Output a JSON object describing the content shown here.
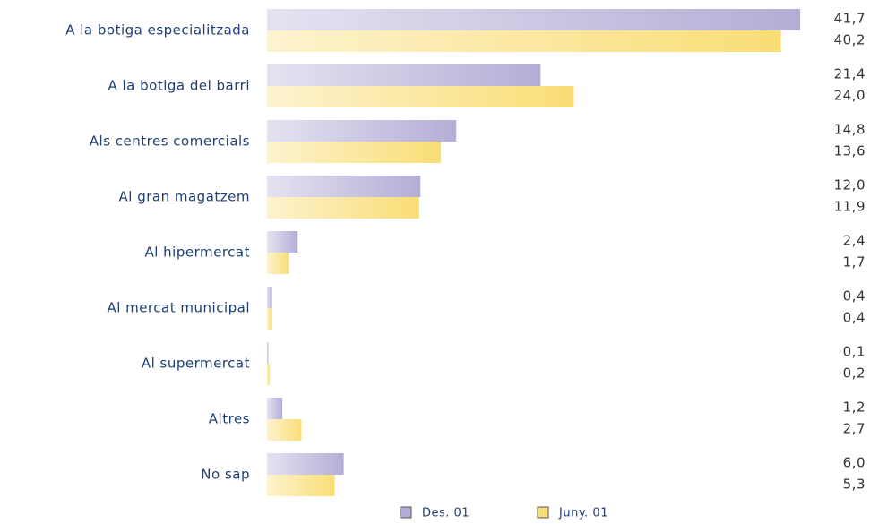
{
  "chart_data": {
    "type": "bar",
    "orientation": "horizontal",
    "categories": [
      "A la botiga especialitzada",
      "A la botiga del barri",
      "Als centres comercials",
      "Al gran magatzem",
      "Al hipermercat",
      "Al mercat municipal",
      "Al supermercat",
      "Altres",
      "No sap"
    ],
    "series": [
      {
        "name": "Des. 01",
        "color": "#b3aed6",
        "values": [
          41.7,
          21.4,
          14.8,
          12.0,
          2.4,
          0.4,
          0.1,
          1.2,
          6.0
        ],
        "value_labels": [
          "41,7",
          "21,4",
          "14,8",
          "12,0",
          "2,4",
          "0,4",
          "0,1",
          "1,2",
          "6,0"
        ]
      },
      {
        "name": "Juny. 01",
        "color": "#f9dd75",
        "values": [
          40.2,
          24.0,
          13.6,
          11.9,
          1.7,
          0.4,
          0.2,
          2.7,
          5.3
        ],
        "value_labels": [
          "40,2",
          "24,0",
          "13,6",
          "11,9",
          "1,7",
          "0,4",
          "0,2",
          "2,7",
          "5,3"
        ]
      }
    ],
    "legend": "bottom"
  }
}
